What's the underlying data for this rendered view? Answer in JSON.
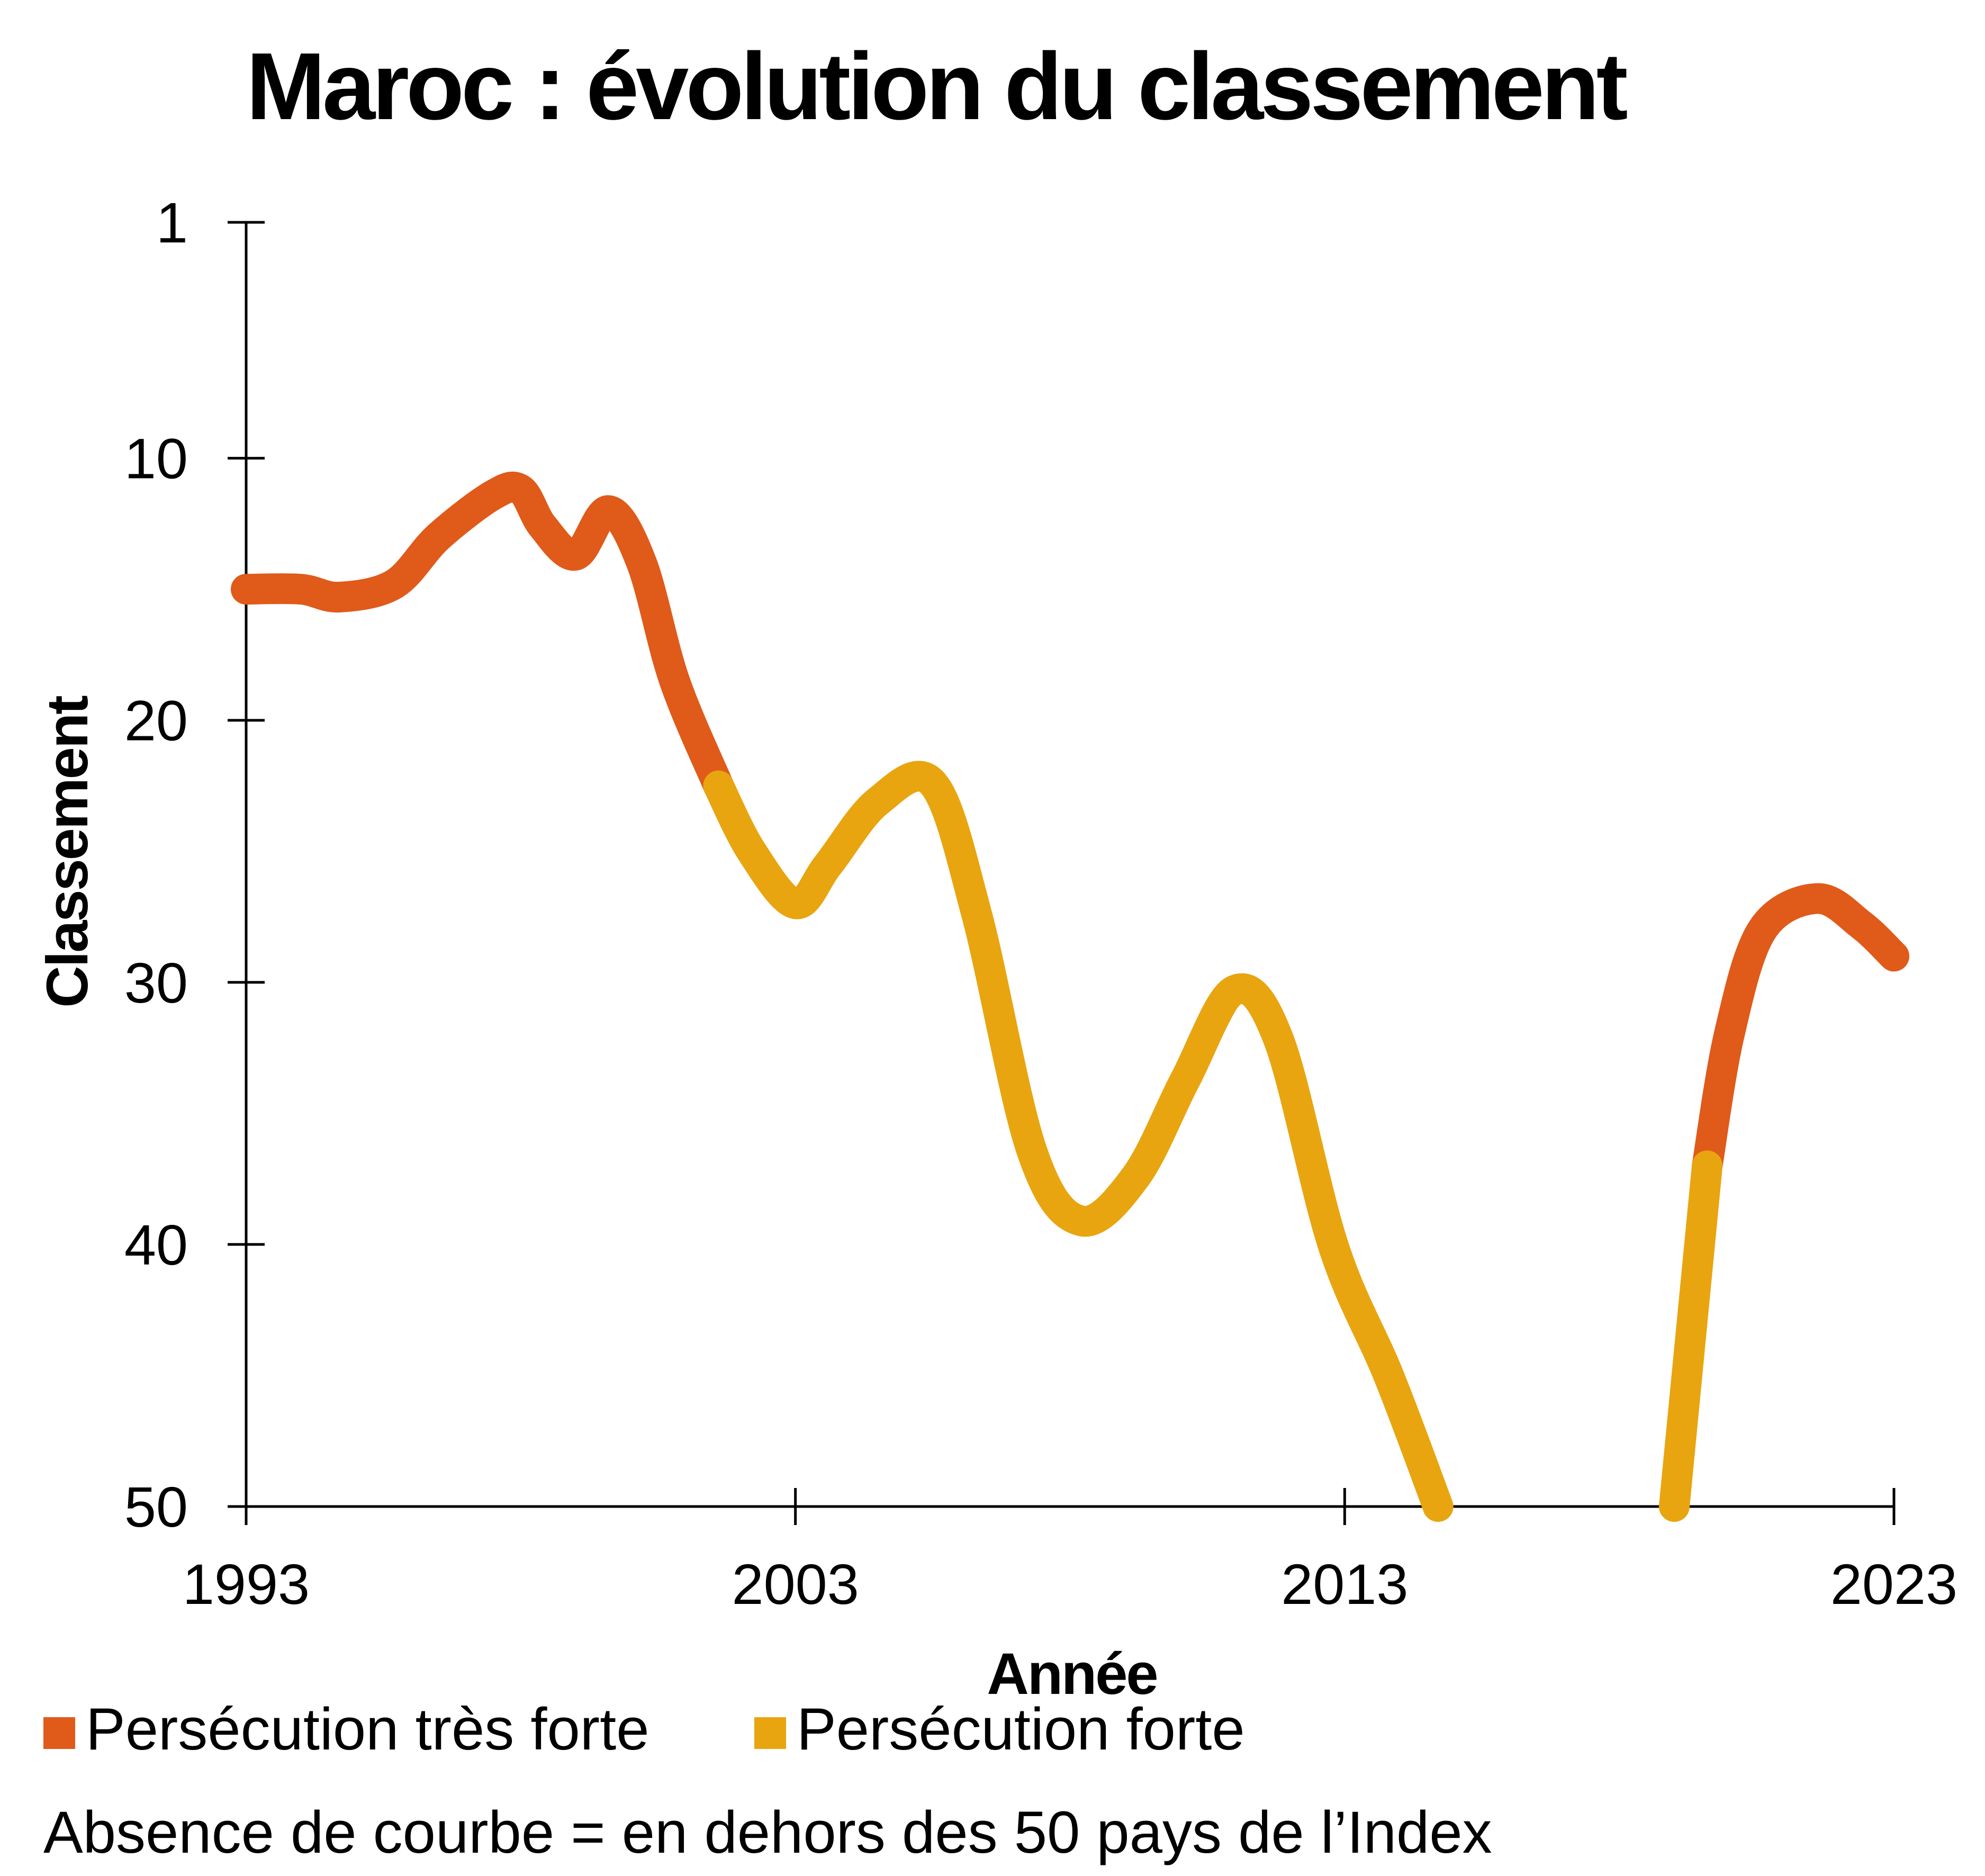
{
  "chart_data": {
    "type": "line",
    "title": "Maroc : évolution du classement",
    "xlabel": "Année",
    "ylabel": "Classement",
    "xlim": [
      1993,
      2023
    ],
    "ylim": [
      1,
      50
    ],
    "y_inverted": true,
    "x_ticks": [
      1993,
      2003,
      2013,
      2023
    ],
    "y_ticks": [
      1,
      10,
      20,
      30,
      40,
      50
    ],
    "grid": false,
    "legend_position": "bottom",
    "series": [
      {
        "name": "Persécution très forte",
        "color": "#e05a1a",
        "segments": [
          {
            "x": [
              1993,
              1994,
              1994.7,
              1995.7,
              1996.5,
              1997.5,
              1998,
              1998.4,
              1999,
              1999.6,
              2000.2,
              2000.8,
              2001.6
            ],
            "y": [
              15,
              15,
              15.3,
              14.8,
              13,
              11.4,
              11.2,
              12.6,
              13.7,
              12,
              14,
              18.5,
              22.5
            ]
          },
          {
            "x": [
              2019.6,
              2020,
              2020.6,
              2021.6,
              2022.4,
              2023
            ],
            "y": [
              37,
              32,
              28,
              26.8,
              27.8,
              29
            ]
          }
        ]
      },
      {
        "name": "Persécution forte",
        "color": "#e8a50f",
        "segments": [
          {
            "x": [
              2001.6,
              2002.2,
              2003,
              2003.6,
              2004.5,
              2005.5,
              2006.3,
              2007.3,
              2008.2,
              2009.2,
              2010.1,
              2011,
              2011.8,
              2012.8,
              2013.8,
              2014.7
            ],
            "y": [
              22.5,
              25,
              27,
              25.5,
              23.1,
              22.4,
              27.4,
              36.4,
              39.1,
              37.4,
              33.7,
              30.3,
              32.2,
              40.1,
              45,
              50
            ]
          },
          {
            "x": [
              2019,
              2019.6
            ],
            "y": [
              50,
              37
            ]
          }
        ]
      }
    ]
  },
  "legend": [
    {
      "label": "Persécution très forte",
      "color": "#e05a1a"
    },
    {
      "label": "Persécution forte",
      "color": "#e8a50f"
    }
  ],
  "note": "Absence de courbe = en dehors des 50 pays de l’Index"
}
